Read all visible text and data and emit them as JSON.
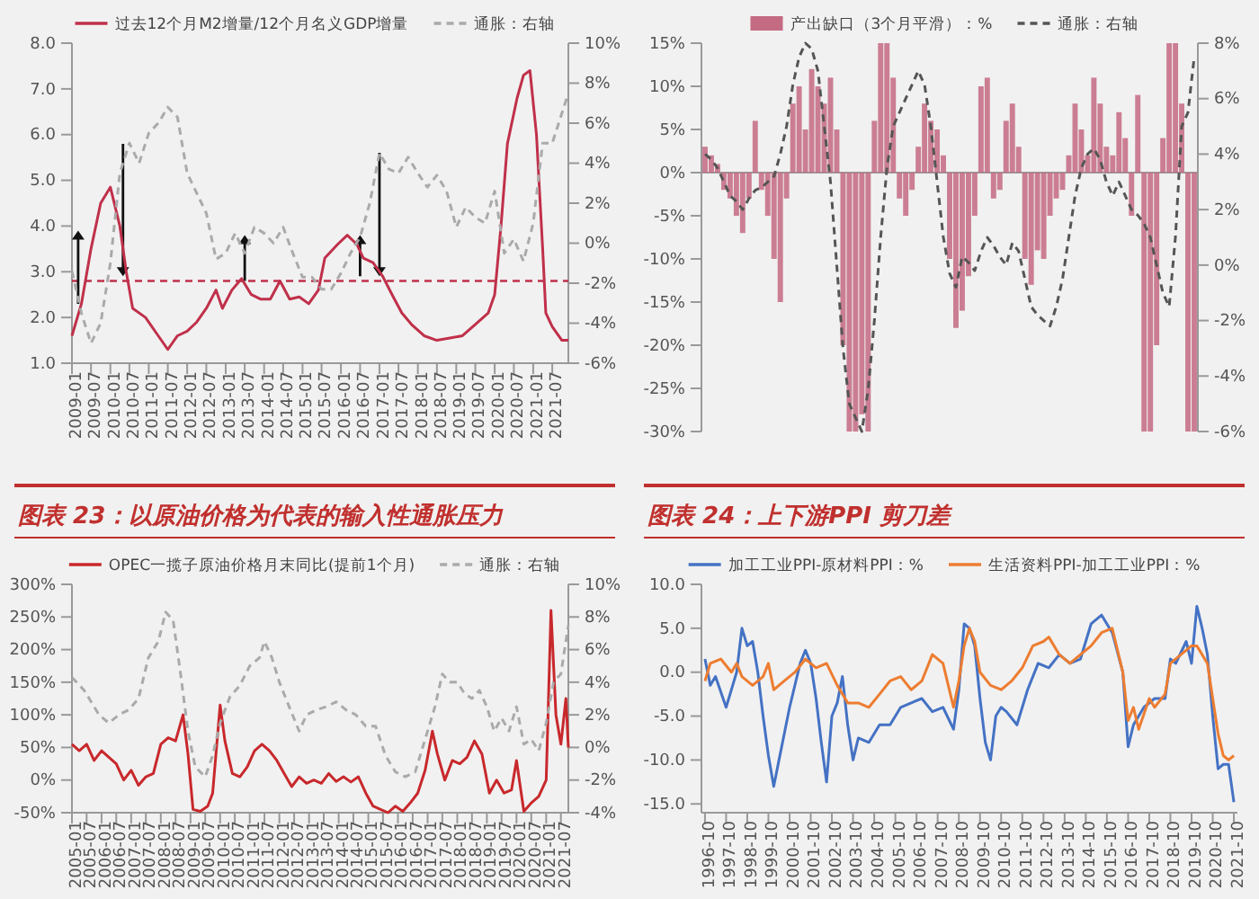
{
  "chart_data": [
    {
      "type": "line",
      "legend": "top",
      "xlim": [
        "2009-01",
        "2021-12"
      ],
      "xticks": [
        "2009-01",
        "2009-07",
        "2010-01",
        "2010-07",
        "2011-01",
        "2011-07",
        "2012-01",
        "2012-07",
        "2013-01",
        "2013-07",
        "2014-01",
        "2014-07",
        "2015-01",
        "2015-07",
        "2016-01",
        "2016-07",
        "2017-01",
        "2017-07",
        "2018-01",
        "2018-07",
        "2019-01",
        "2019-07",
        "2020-01",
        "2020-07",
        "2021-01",
        "2021-07"
      ],
      "ylim": [
        1,
        8
      ],
      "yticks": [
        {
          "value": 1,
          "label": "1.0"
        },
        {
          "value": 2,
          "label": "2.0"
        },
        {
          "value": 3,
          "label": "3.0"
        },
        {
          "value": 4,
          "label": "4.0"
        },
        {
          "value": 5,
          "label": "5.0"
        },
        {
          "value": 6,
          "label": "6.0"
        },
        {
          "value": 7,
          "label": "7.0"
        },
        {
          "value": 8,
          "label": "8.0"
        }
      ],
      "y2lim": [
        -6,
        10
      ],
      "y2ticks": [
        {
          "value": -6,
          "label": "-6%"
        },
        {
          "value": -4,
          "label": "-4%"
        },
        {
          "value": -2,
          "label": "-2%"
        },
        {
          "value": 0,
          "label": "0%"
        },
        {
          "value": 2,
          "label": "2%"
        },
        {
          "value": 4,
          "label": "4%"
        },
        {
          "value": 6,
          "label": "6%"
        },
        {
          "value": 8,
          "label": "8%"
        },
        {
          "value": 10,
          "label": "10%"
        }
      ],
      "ref_lines": [
        {
          "axis": "y",
          "value": 2.8,
          "color": "#c0304a",
          "line_style": "dashed"
        }
      ],
      "series": [
        {
          "name": "过去12个月M2增量/12个月名义GDP增量",
          "color": "#c0304a",
          "x": [
            "2009-01",
            "2009-04",
            "2009-07",
            "2009-10",
            "2010-01",
            "2010-04",
            "2010-06",
            "2010-08",
            "2010-12",
            "2011-04",
            "2011-07",
            "2011-10",
            "2012-01",
            "2012-04",
            "2012-07",
            "2012-10",
            "2012-12",
            "2013-03",
            "2013-06",
            "2013-09",
            "2013-12",
            "2014-03",
            "2014-06",
            "2014-09",
            "2014-12",
            "2015-03",
            "2015-06",
            "2015-08",
            "2015-12",
            "2016-03",
            "2016-06",
            "2016-08",
            "2016-11",
            "2017-02",
            "2017-05",
            "2017-08",
            "2017-11",
            "2018-03",
            "2018-07",
            "2018-11",
            "2019-03",
            "2019-07",
            "2019-11",
            "2020-01",
            "2020-03",
            "2020-05",
            "2020-08",
            "2020-10",
            "2020-12",
            "2021-02",
            "2021-04",
            "2021-05",
            "2021-07",
            "2021-10",
            "2021-12"
          ],
          "values": [
            1.6,
            2.3,
            3.5,
            4.5,
            4.85,
            4.0,
            3.0,
            2.2,
            2.0,
            1.6,
            1.3,
            1.6,
            1.7,
            1.9,
            2.2,
            2.6,
            2.2,
            2.6,
            2.85,
            2.5,
            2.4,
            2.4,
            2.8,
            2.4,
            2.45,
            2.3,
            2.6,
            3.3,
            3.6,
            3.8,
            3.6,
            3.3,
            3.2,
            2.9,
            2.5,
            2.1,
            1.85,
            1.6,
            1.5,
            1.55,
            1.6,
            1.85,
            2.1,
            2.5,
            4.0,
            5.8,
            6.8,
            7.3,
            7.4,
            6.0,
            3.5,
            2.1,
            1.8,
            1.5,
            1.5
          ]
        },
        {
          "name": "通胀：右轴",
          "color": "#aaaaaa",
          "axis": "y2",
          "line_style": "dashed",
          "x": [
            "2009-01",
            "2009-04",
            "2009-07",
            "2009-10",
            "2010-01",
            "2010-04",
            "2010-07",
            "2010-10",
            "2011-01",
            "2011-04",
            "2011-07",
            "2011-10",
            "2012-01",
            "2012-04",
            "2012-07",
            "2012-10",
            "2013-01",
            "2013-04",
            "2013-07",
            "2013-10",
            "2014-01",
            "2014-04",
            "2014-07",
            "2014-10",
            "2015-01",
            "2015-04",
            "2015-07",
            "2015-10",
            "2016-01",
            "2016-04",
            "2016-07",
            "2016-10",
            "2017-01",
            "2017-04",
            "2017-07",
            "2017-10",
            "2018-01",
            "2018-04",
            "2018-07",
            "2018-10",
            "2019-01",
            "2019-04",
            "2019-07",
            "2019-10",
            "2020-01",
            "2020-04",
            "2020-07",
            "2020-10",
            "2021-01",
            "2021-04",
            "2021-07",
            "2021-12"
          ],
          "values": [
            -1.4,
            -3.5,
            -5.0,
            -4.0,
            -1.0,
            3.5,
            5.0,
            4.0,
            5.5,
            6.0,
            6.8,
            6.3,
            3.5,
            2.5,
            1.5,
            -0.8,
            -0.5,
            0.5,
            -0.5,
            0.8,
            0.5,
            0,
            0.8,
            -0.5,
            -1.7,
            -1.7,
            -2.3,
            -2.3,
            -1.5,
            -0.5,
            0.3,
            2.0,
            4.5,
            3.7,
            3.5,
            4.3,
            3.5,
            2.8,
            3.4,
            2.6,
            0.8,
            1.8,
            1.3,
            1.0,
            2.6,
            -0.5,
            0.2,
            -0.9,
            1.0,
            5.0,
            5.0,
            7.5
          ]
        }
      ]
    },
    {
      "type": "bar",
      "legend": "top",
      "categories": [
        null,
        null,
        null,
        null,
        null,
        null,
        null,
        null,
        null,
        null,
        null,
        null,
        null,
        null,
        null,
        null,
        null,
        null,
        null,
        null,
        null,
        null,
        null,
        null,
        null,
        null,
        null,
        null,
        null,
        null,
        null,
        null,
        null,
        null,
        null,
        null,
        null,
        null,
        null,
        null,
        null,
        null,
        null,
        null,
        null,
        null,
        null,
        null,
        null,
        null,
        null,
        null,
        null,
        null,
        null,
        null,
        null,
        null,
        null,
        null,
        null,
        null,
        null,
        null,
        null,
        null,
        null,
        null,
        null,
        null,
        null,
        null,
        null,
        null,
        null,
        null,
        null,
        null,
        null
      ],
      "ylim": [
        -30,
        15
      ],
      "yticks": [
        {
          "value": -30,
          "label": "-30%"
        },
        {
          "value": -25,
          "label": "-25%"
        },
        {
          "value": -20,
          "label": "-20%"
        },
        {
          "value": -15,
          "label": "-15%"
        },
        {
          "value": -10,
          "label": "-10%"
        },
        {
          "value": -5,
          "label": "-5%"
        },
        {
          "value": 0,
          "label": "0%"
        },
        {
          "value": 5,
          "label": "5%"
        },
        {
          "value": 10,
          "label": "10%"
        },
        {
          "value": 15,
          "label": "15%"
        }
      ],
      "y2lim": [
        -6,
        8
      ],
      "y2ticks": [
        {
          "value": -6,
          "label": "-6%"
        },
        {
          "value": -4,
          "label": "-4%"
        },
        {
          "value": -2,
          "label": "-2%"
        },
        {
          "value": 0,
          "label": "0%"
        },
        {
          "value": 2,
          "label": "2%"
        },
        {
          "value": 4,
          "label": "4%"
        },
        {
          "value": 6,
          "label": "6%"
        },
        {
          "value": 8,
          "label": "8%"
        }
      ],
      "series": [
        {
          "name": "产出缺口（3个月平滑）：%",
          "color": "#c46a82",
          "values": [
            3,
            2,
            1,
            -2,
            -3,
            -5,
            -7,
            -3,
            6,
            -2,
            -5,
            -10,
            -15,
            -3,
            8,
            10,
            5,
            12,
            10,
            8,
            11,
            5,
            -20,
            -30,
            -30,
            -28,
            -30,
            6,
            15,
            15,
            11,
            -3,
            -5,
            -2,
            3,
            8,
            6,
            5,
            2,
            -10,
            -18,
            -16,
            -12,
            -5,
            10,
            11,
            -3,
            -2,
            6,
            8,
            3,
            -10,
            -13,
            -9,
            -10,
            -5,
            -3,
            -2,
            2,
            8,
            5,
            2,
            11,
            8,
            3,
            2,
            7,
            4,
            -5,
            9,
            -30,
            -30,
            -20,
            4,
            15,
            15,
            8,
            -30,
            -30
          ]
        },
        {
          "name": "通胀：右轴",
          "type": "line",
          "axis": "y2",
          "line_style": "dashed",
          "color": "#555555",
          "values": [
            4,
            3.8,
            3.5,
            3,
            2.5,
            2.3,
            2.0,
            2.4,
            2.7,
            2.8,
            3.0,
            3.2,
            4.0,
            5.0,
            6.5,
            7.5,
            8.0,
            7.8,
            7.0,
            5.0,
            3.0,
            0,
            -3,
            -5,
            -5.5,
            -6,
            -4.5,
            -2,
            1,
            3.5,
            5.0,
            5.5,
            6.0,
            6.5,
            7.0,
            6.5,
            5.0,
            3.0,
            1.0,
            -0.3,
            -0.8,
            0.3,
            0.1,
            -0.2,
            0.5,
            1.0,
            0.7,
            0.3,
            0.0,
            0.8,
            0.5,
            -0.5,
            -1.5,
            -1.8,
            -2.0,
            -2.2,
            -1.5,
            -0.5,
            1.0,
            2.5,
            3.5,
            4.0,
            4.2,
            3.8,
            3.0,
            2.5,
            3.0,
            2.5,
            2.0,
            1.8,
            1.5,
            1.0,
            0.0,
            -1.0,
            -1.5,
            1.0,
            5.0,
            5.5,
            7.5
          ]
        }
      ]
    },
    {
      "type": "line",
      "title": "图表 23：以原油价格为代表的输入性通胀压力",
      "legend": "top",
      "xlim": [
        "2005-01",
        "2021-10"
      ],
      "xticks": [
        "2005-01",
        "2005-07",
        "2006-01",
        "2006-07",
        "2007-01",
        "2007-07",
        "2008-01",
        "2008-07",
        "2009-01",
        "2009-07",
        "2010-01",
        "2010-07",
        "2011-01",
        "2011-07",
        "2012-01",
        "2012-07",
        "2013-01",
        "2013-07",
        "2014-01",
        "2014-07",
        "2015-01",
        "2015-07",
        "2016-01",
        "2016-07",
        "2017-01",
        "2017-07",
        "2018-01",
        "2018-07",
        "2019-01",
        "2019-07",
        "2020-01",
        "2020-07",
        "2021-01",
        "2021-07"
      ],
      "ylim": [
        -50,
        300
      ],
      "yticks": [
        {
          "value": -50,
          "label": "-50%"
        },
        {
          "value": 0,
          "label": "0%"
        },
        {
          "value": 50,
          "label": "50%"
        },
        {
          "value": 100,
          "label": "100%"
        },
        {
          "value": 150,
          "label": "150%"
        },
        {
          "value": 200,
          "label": "200%"
        },
        {
          "value": 250,
          "label": "250%"
        },
        {
          "value": 300,
          "label": "300%"
        }
      ],
      "y2lim": [
        -4,
        10
      ],
      "y2ticks": [
        {
          "value": -4,
          "label": "-4%"
        },
        {
          "value": -2,
          "label": "-2%"
        },
        {
          "value": 0,
          "label": "0%"
        },
        {
          "value": 2,
          "label": "2%"
        },
        {
          "value": 4,
          "label": "4%"
        },
        {
          "value": 6,
          "label": "6%"
        },
        {
          "value": 8,
          "label": "8%"
        },
        {
          "value": 10,
          "label": "10%"
        }
      ],
      "series": [
        {
          "name": "OPEC一揽子原油价格月末同比(提前1个月)",
          "color": "#c8282c",
          "x": [
            "2005-01",
            "2005-04",
            "2005-07",
            "2005-10",
            "2006-01",
            "2006-04",
            "2006-07",
            "2006-10",
            "2007-01",
            "2007-04",
            "2007-07",
            "2007-10",
            "2008-01",
            "2008-04",
            "2008-07",
            "2008-10",
            "2008-12",
            "2009-02",
            "2009-05",
            "2009-08",
            "2009-10",
            "2010-01",
            "2010-03",
            "2010-06",
            "2010-09",
            "2010-12",
            "2011-03",
            "2011-06",
            "2011-09",
            "2011-12",
            "2012-03",
            "2012-06",
            "2012-09",
            "2012-12",
            "2013-03",
            "2013-06",
            "2013-09",
            "2013-12",
            "2014-03",
            "2014-06",
            "2014-09",
            "2014-12",
            "2015-03",
            "2015-06",
            "2015-09",
            "2015-12",
            "2016-03",
            "2016-06",
            "2016-09",
            "2016-12",
            "2017-03",
            "2017-05",
            "2017-08",
            "2017-11",
            "2018-02",
            "2018-05",
            "2018-08",
            "2018-11",
            "2019-02",
            "2019-05",
            "2019-08",
            "2019-11",
            "2020-01",
            "2020-04",
            "2020-07",
            "2020-10",
            "2021-01",
            "2021-03",
            "2021-05",
            "2021-07",
            "2021-09",
            "2021-10"
          ],
          "values": [
            55,
            45,
            55,
            30,
            45,
            35,
            25,
            0,
            15,
            -8,
            5,
            10,
            55,
            65,
            60,
            100,
            40,
            -45,
            -48,
            -40,
            -20,
            115,
            60,
            10,
            5,
            20,
            45,
            55,
            45,
            30,
            10,
            -10,
            5,
            -5,
            0,
            -5,
            10,
            -2,
            5,
            -3,
            5,
            -20,
            -40,
            -45,
            -50,
            -40,
            -48,
            -35,
            -20,
            15,
            75,
            40,
            0,
            30,
            25,
            35,
            60,
            40,
            -20,
            0,
            -20,
            -15,
            30,
            -48,
            -35,
            -25,
            0,
            260,
            100,
            55,
            125,
            50
          ]
        },
        {
          "name": "通胀：右轴",
          "color": "#aaaaaa",
          "axis": "y2",
          "line_style": "dashed",
          "x": [
            "2005-01",
            "2005-06",
            "2005-12",
            "2006-04",
            "2006-08",
            "2006-12",
            "2007-04",
            "2007-08",
            "2007-12",
            "2008-03",
            "2008-06",
            "2008-09",
            "2008-12",
            "2009-03",
            "2009-07",
            "2009-10",
            "2010-01",
            "2010-05",
            "2010-09",
            "2011-01",
            "2011-05",
            "2011-07",
            "2011-10",
            "2012-01",
            "2012-05",
            "2012-09",
            "2012-12",
            "2013-04",
            "2013-08",
            "2013-12",
            "2014-04",
            "2014-08",
            "2014-12",
            "2015-04",
            "2015-08",
            "2015-12",
            "2016-04",
            "2016-08",
            "2016-12",
            "2017-04",
            "2017-07",
            "2017-10",
            "2018-01",
            "2018-04",
            "2018-07",
            "2018-10",
            "2019-01",
            "2019-04",
            "2019-07",
            "2019-10",
            "2020-01",
            "2020-04",
            "2020-07",
            "2020-10",
            "2021-01",
            "2021-04",
            "2021-07",
            "2021-10"
          ],
          "values": [
            4.3,
            3.5,
            2.0,
            1.5,
            2.0,
            2.3,
            3.0,
            5.5,
            6.5,
            8.3,
            7.8,
            4.5,
            1.0,
            -1.2,
            -1.8,
            -0.5,
            1.5,
            3.1,
            3.8,
            5.0,
            5.5,
            6.5,
            5.5,
            4.0,
            2.5,
            1.0,
            2.0,
            2.3,
            2.5,
            2.8,
            2.3,
            2.0,
            1.3,
            1.3,
            -0.5,
            -1.5,
            -1.8,
            -1.5,
            0.5,
            2.5,
            4.5,
            4.0,
            4.0,
            3.3,
            3.0,
            3.5,
            2.5,
            1.0,
            1.8,
            1.0,
            2.5,
            0.2,
            0.5,
            -0.2,
            1.5,
            4.0,
            4.5,
            7.5
          ]
        }
      ]
    },
    {
      "type": "line",
      "title": "图表 24：上下游PPI 剪刀差",
      "legend": "top",
      "xlim": [
        "1996-08",
        "2021-12"
      ],
      "xticks": [
        {
          "value": "1996-10",
          "label": "1996-10"
        },
        {
          "value": "1997-10",
          "label": "1997-10"
        },
        {
          "value": "1998-10",
          "label": "1998-10"
        },
        {
          "value": "1999-10",
          "label": "1999-10"
        },
        {
          "value": "2000-10",
          "label": "2000-10"
        },
        {
          "value": "2001-10",
          "label": "2001-10"
        },
        {
          "value": "2002-10",
          "label": "2002-10"
        },
        {
          "value": "2003-10",
          "label": "2003-10"
        },
        {
          "value": "2004-10",
          "label": "2004-10"
        },
        {
          "value": "2005-10",
          "label": "2005-10"
        },
        {
          "value": "2006-10",
          "label": "2006-10"
        },
        {
          "value": "2007-10",
          "label": "2007-10"
        },
        {
          "value": "2008-10",
          "label": "2008-10"
        },
        {
          "value": "2009-10",
          "label": "2009-10"
        },
        {
          "value": "2010-10",
          "label": "2010-10"
        },
        {
          "value": "2011-10",
          "label": "2011-10"
        },
        {
          "value": "2012-10",
          "label": "2012-10"
        },
        {
          "value": "2013-10",
          "label": "2013-10"
        },
        {
          "value": "2014-10",
          "label": "2014-10"
        },
        {
          "value": "2015-10",
          "label": "2015-10"
        },
        {
          "value": "2016-10",
          "label": "2016-10"
        },
        {
          "value": "2017-10",
          "label": "2017-10"
        },
        {
          "value": "2018-10",
          "label": "2018-10"
        },
        {
          "value": "2019-10",
          "label": "2019-10"
        },
        {
          "value": "2020-10",
          "label": "2020-10"
        },
        {
          "value": "2021-10",
          "label": "2021-10"
        }
      ],
      "ylim": [
        -16,
        10
      ],
      "yticks": [
        {
          "value": -15,
          "label": "-15.0"
        },
        {
          "value": -10,
          "label": "-10.0"
        },
        {
          "value": -5,
          "label": "-5.0"
        },
        {
          "value": 0,
          "label": "0.0"
        },
        {
          "value": 5,
          "label": "5.0"
        },
        {
          "value": 10,
          "label": "10.0"
        }
      ],
      "series": [
        {
          "name": "加工工业PPI-原材料PPI：%",
          "color": "#4472c4",
          "x": [
            "1996-10",
            "1997-01",
            "1997-04",
            "1997-10",
            "1998-04",
            "1998-07",
            "1998-10",
            "1999-01",
            "1999-04",
            "1999-07",
            "1999-10",
            "2000-01",
            "2000-04",
            "2000-10",
            "2001-04",
            "2001-07",
            "2001-10",
            "2002-01",
            "2002-04",
            "2002-07",
            "2002-10",
            "2003-01",
            "2003-04",
            "2003-07",
            "2003-10",
            "2004-01",
            "2004-07",
            "2005-01",
            "2005-07",
            "2006-01",
            "2006-07",
            "2007-01",
            "2007-07",
            "2008-01",
            "2008-07",
            "2008-10",
            "2009-01",
            "2009-04",
            "2009-07",
            "2009-10",
            "2010-01",
            "2010-04",
            "2010-07",
            "2010-10",
            "2011-01",
            "2011-07",
            "2012-01",
            "2012-07",
            "2013-01",
            "2013-07",
            "2014-01",
            "2014-07",
            "2015-01",
            "2015-07",
            "2016-01",
            "2016-07",
            "2016-10",
            "2017-01",
            "2017-07",
            "2018-01",
            "2018-07",
            "2018-10",
            "2019-01",
            "2019-07",
            "2019-10",
            "2020-01",
            "2020-04",
            "2020-07",
            "2020-10",
            "2021-01",
            "2021-04",
            "2021-07",
            "2021-10"
          ],
          "values": [
            1.5,
            -1.5,
            -0.5,
            -4,
            0,
            5,
            3,
            3.5,
            0,
            -5,
            -9.5,
            -13,
            -10,
            -4,
            1,
            2.5,
            1,
            -3,
            -8,
            -12.5,
            -5,
            -3.5,
            -0.5,
            -6,
            -10,
            -7.5,
            -8,
            -6,
            -6,
            -4,
            -3.5,
            -3,
            -4.5,
            -4,
            -6.5,
            -2,
            5.5,
            5,
            3,
            -3,
            -8,
            -10,
            -5,
            -4,
            -4.5,
            -6,
            -2,
            1,
            0.5,
            2,
            1,
            1.5,
            5.5,
            6.5,
            4.5,
            0,
            -8.5,
            -6,
            -4,
            -3,
            -3,
            1.5,
            1,
            3.5,
            1,
            7.5,
            5,
            2,
            -5,
            -11,
            -10.5,
            -10.5,
            -14.8
          ]
        },
        {
          "name": "生活资料PPI-加工工业PPI：%",
          "color": "#ed7d31",
          "x": [
            "1996-10",
            "1997-01",
            "1997-07",
            "1998-01",
            "1998-04",
            "1998-07",
            "1999-01",
            "1999-07",
            "1999-10",
            "2000-01",
            "2000-07",
            "2001-01",
            "2001-07",
            "2002-01",
            "2002-07",
            "2003-01",
            "2003-07",
            "2004-01",
            "2004-07",
            "2005-01",
            "2005-07",
            "2006-01",
            "2006-07",
            "2007-01",
            "2007-07",
            "2008-01",
            "2008-07",
            "2008-10",
            "2009-01",
            "2009-04",
            "2009-07",
            "2009-10",
            "2010-04",
            "2010-10",
            "2011-04",
            "2011-10",
            "2012-04",
            "2012-10",
            "2013-01",
            "2013-07",
            "2014-01",
            "2014-07",
            "2015-01",
            "2015-07",
            "2016-01",
            "2016-07",
            "2016-10",
            "2017-01",
            "2017-04",
            "2017-10",
            "2018-01",
            "2018-07",
            "2018-10",
            "2019-04",
            "2019-10",
            "2020-01",
            "2020-07",
            "2020-10",
            "2021-01",
            "2021-04",
            "2021-07",
            "2021-10"
          ],
          "values": [
            -1,
            1,
            1.5,
            0,
            1,
            -0.5,
            -1.5,
            -0.5,
            1,
            -2,
            -1,
            0,
            1.5,
            0.5,
            1,
            -1.5,
            -3.5,
            -3.5,
            -4,
            -2.5,
            -1,
            -0.5,
            -2,
            -1,
            2,
            1,
            -4,
            -1,
            3,
            5,
            3.5,
            0,
            -1.5,
            -2,
            -1,
            0.5,
            3,
            3.5,
            4,
            2,
            1,
            2,
            3,
            4.5,
            5,
            0,
            -5.5,
            -4,
            -6.5,
            -3,
            -4,
            -2.5,
            1,
            2,
            3,
            3,
            1,
            -3,
            -7,
            -9.5,
            -10,
            -9.5
          ]
        }
      ]
    }
  ]
}
